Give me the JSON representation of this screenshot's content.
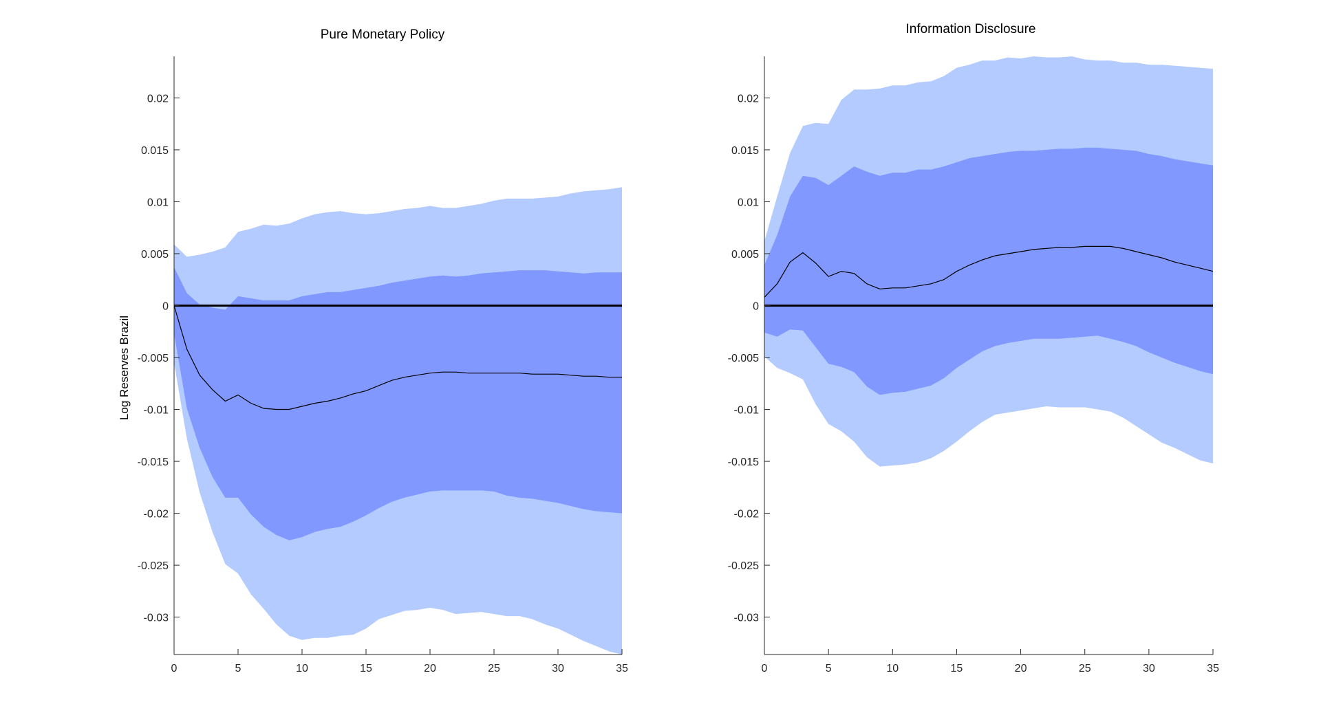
{
  "colors": {
    "outer_band": "#b3cbff",
    "inner_band": "#8098ff",
    "median_line": "#000000",
    "zero_line": "#000000",
    "axis": "#262626"
  },
  "chart_data": [
    {
      "type": "area",
      "title": "Pure Monetary Policy",
      "xlabel": "",
      "ylabel": "Log Reserves Brazil",
      "xlim": [
        0,
        35
      ],
      "ylim": [
        -0.0336,
        0.024
      ],
      "xticks": [
        "0",
        "5",
        "10",
        "15",
        "20",
        "25",
        "30",
        "35"
      ],
      "yticks": [
        "0.02",
        "0.015",
        "0.01",
        "0.005",
        "0",
        "-0.005",
        "-0.01",
        "-0.015",
        "-0.02",
        "-0.025",
        "-0.03"
      ],
      "x": [
        0,
        1,
        2,
        3,
        4,
        5,
        6,
        7,
        8,
        9,
        10,
        11,
        12,
        13,
        14,
        15,
        16,
        17,
        18,
        19,
        20,
        21,
        22,
        23,
        24,
        25,
        26,
        27,
        28,
        29,
        30,
        31,
        32,
        33,
        34,
        35
      ],
      "outer_upper": [
        0.0059,
        0.0047,
        0.0049,
        0.0052,
        0.0056,
        0.0071,
        0.0074,
        0.0078,
        0.0077,
        0.0079,
        0.0084,
        0.0088,
        0.009,
        0.0091,
        0.0089,
        0.0088,
        0.0089,
        0.0091,
        0.0093,
        0.0094,
        0.0096,
        0.0094,
        0.0094,
        0.0096,
        0.0098,
        0.0101,
        0.0103,
        0.0103,
        0.0103,
        0.0104,
        0.0105,
        0.0108,
        0.011,
        0.0111,
        0.0112,
        0.0114
      ],
      "inner_upper": [
        0.0037,
        0.0012,
        0.0001,
        -0.0002,
        -0.0004,
        0.0009,
        0.0007,
        0.0005,
        0.0005,
        0.0005,
        0.0009,
        0.0011,
        0.0013,
        0.0013,
        0.0015,
        0.0017,
        0.0019,
        0.0022,
        0.0024,
        0.0026,
        0.0028,
        0.0029,
        0.0028,
        0.0029,
        0.0031,
        0.0032,
        0.0033,
        0.0034,
        0.0034,
        0.0034,
        0.0033,
        0.0032,
        0.0031,
        0.0032,
        0.0032,
        0.0032
      ],
      "median": [
        0.0,
        -0.0042,
        -0.0067,
        -0.0081,
        -0.0092,
        -0.0086,
        -0.0094,
        -0.0099,
        -0.01,
        -0.01,
        -0.0097,
        -0.0094,
        -0.0092,
        -0.0089,
        -0.0085,
        -0.0082,
        -0.0077,
        -0.0072,
        -0.0069,
        -0.0067,
        -0.0065,
        -0.0064,
        -0.0064,
        -0.0065,
        -0.0065,
        -0.0065,
        -0.0065,
        -0.0065,
        -0.0066,
        -0.0066,
        -0.0066,
        -0.0067,
        -0.0068,
        -0.0068,
        -0.0069,
        -0.0069
      ],
      "inner_lower": [
        -0.0027,
        -0.0099,
        -0.0137,
        -0.0165,
        -0.0185,
        -0.0185,
        -0.0201,
        -0.0213,
        -0.0221,
        -0.0226,
        -0.0223,
        -0.0218,
        -0.0215,
        -0.0213,
        -0.0208,
        -0.0202,
        -0.0195,
        -0.0189,
        -0.0185,
        -0.0182,
        -0.0179,
        -0.0178,
        -0.0178,
        -0.0178,
        -0.0178,
        -0.0179,
        -0.0183,
        -0.0185,
        -0.0186,
        -0.0188,
        -0.019,
        -0.0193,
        -0.0196,
        -0.0198,
        -0.0199,
        -0.02
      ],
      "outer_lower": [
        -0.0055,
        -0.0128,
        -0.018,
        -0.0218,
        -0.0249,
        -0.0258,
        -0.0278,
        -0.0292,
        -0.0307,
        -0.0318,
        -0.0322,
        -0.032,
        -0.032,
        -0.0318,
        -0.0317,
        -0.0311,
        -0.0302,
        -0.0298,
        -0.0294,
        -0.0293,
        -0.0291,
        -0.0293,
        -0.0297,
        -0.0296,
        -0.0295,
        -0.0297,
        -0.0299,
        -0.0299,
        -0.0302,
        -0.0307,
        -0.0311,
        -0.0317,
        -0.0323,
        -0.0328,
        -0.0333,
        -0.0336
      ]
    },
    {
      "type": "area",
      "title": "Information Disclosure",
      "xlabel": "",
      "ylabel": "",
      "xlim": [
        0,
        35
      ],
      "ylim": [
        -0.0336,
        0.024
      ],
      "xticks": [
        "0",
        "5",
        "10",
        "15",
        "20",
        "25",
        "30",
        "35"
      ],
      "yticks": [
        "0.02",
        "0.015",
        "0.01",
        "0.005",
        "0",
        "-0.005",
        "-0.01",
        "-0.015",
        "-0.02",
        "-0.025",
        "-0.03"
      ],
      "x": [
        0,
        1,
        2,
        3,
        4,
        5,
        6,
        7,
        8,
        9,
        10,
        11,
        12,
        13,
        14,
        15,
        16,
        17,
        18,
        19,
        20,
        21,
        22,
        23,
        24,
        25,
        26,
        27,
        28,
        29,
        30,
        31,
        32,
        33,
        34,
        35
      ],
      "outer_upper": [
        0.0062,
        0.0105,
        0.0147,
        0.0173,
        0.0176,
        0.0175,
        0.0198,
        0.0208,
        0.0208,
        0.0209,
        0.0212,
        0.0212,
        0.0215,
        0.0216,
        0.0221,
        0.0229,
        0.0232,
        0.0236,
        0.0236,
        0.0239,
        0.0238,
        0.024,
        0.0239,
        0.0239,
        0.024,
        0.0237,
        0.0236,
        0.0236,
        0.0234,
        0.0234,
        0.0232,
        0.0232,
        0.0231,
        0.023,
        0.0229,
        0.0228
      ],
      "inner_upper": [
        0.0039,
        0.0068,
        0.0105,
        0.0125,
        0.0123,
        0.0116,
        0.0125,
        0.0134,
        0.0129,
        0.0125,
        0.0128,
        0.0128,
        0.0131,
        0.0131,
        0.0134,
        0.0138,
        0.0142,
        0.0144,
        0.0146,
        0.0148,
        0.0149,
        0.0149,
        0.015,
        0.0151,
        0.0151,
        0.0152,
        0.0152,
        0.0151,
        0.015,
        0.0149,
        0.0146,
        0.0144,
        0.0141,
        0.0139,
        0.0137,
        0.0135
      ],
      "median": [
        0.0008,
        0.0021,
        0.0042,
        0.0051,
        0.0041,
        0.0028,
        0.0033,
        0.0031,
        0.0021,
        0.0016,
        0.0017,
        0.0017,
        0.0019,
        0.0021,
        0.0025,
        0.0033,
        0.0039,
        0.0044,
        0.0048,
        0.005,
        0.0052,
        0.0054,
        0.0055,
        0.0056,
        0.0056,
        0.0057,
        0.0057,
        0.0057,
        0.0055,
        0.0052,
        0.0049,
        0.0046,
        0.0042,
        0.0039,
        0.0036,
        0.0033
      ],
      "inner_lower": [
        -0.0026,
        -0.003,
        -0.0023,
        -0.0024,
        -0.004,
        -0.0056,
        -0.0059,
        -0.0064,
        -0.0078,
        -0.0086,
        -0.0084,
        -0.0083,
        -0.008,
        -0.0077,
        -0.007,
        -0.006,
        -0.0052,
        -0.0044,
        -0.0039,
        -0.0036,
        -0.0034,
        -0.0032,
        -0.0032,
        -0.0032,
        -0.0031,
        -0.003,
        -0.0029,
        -0.0032,
        -0.0035,
        -0.0039,
        -0.0045,
        -0.005,
        -0.0055,
        -0.0059,
        -0.0063,
        -0.0066
      ],
      "outer_lower": [
        -0.0049,
        -0.006,
        -0.0065,
        -0.0071,
        -0.0095,
        -0.0114,
        -0.0121,
        -0.0131,
        -0.0146,
        -0.0155,
        -0.0154,
        -0.0153,
        -0.0151,
        -0.0147,
        -0.014,
        -0.0131,
        -0.0121,
        -0.0112,
        -0.0105,
        -0.0103,
        -0.0101,
        -0.0099,
        -0.0097,
        -0.0098,
        -0.0098,
        -0.0098,
        -0.01,
        -0.0102,
        -0.0108,
        -0.0116,
        -0.0124,
        -0.0132,
        -0.0137,
        -0.0143,
        -0.0149,
        -0.0152
      ]
    }
  ]
}
